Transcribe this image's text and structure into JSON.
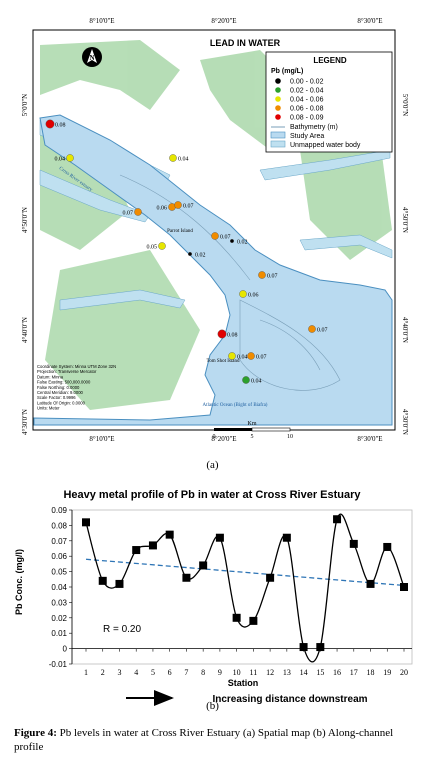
{
  "map": {
    "title": "LEAD IN WATER",
    "top_ticks": [
      "8°10'0\"E",
      "8°20'0\"E",
      "8°30'0\"E"
    ],
    "bottom_ticks": [
      "8°10'0\"E",
      "8°20'0\"E",
      "8°30'0\"E"
    ],
    "left_ticks": [
      "5°0'0\"N",
      "4°50'0\"N",
      "4°40'0\"N",
      "4°30'0\"N"
    ],
    "right_ticks": [
      "5°0'0\"N",
      "4°50'0\"N",
      "4°40'0\"N",
      "4°30'0\"N"
    ],
    "legend": {
      "title": "LEGEND",
      "subtitle": "Pb (mg/L)",
      "classes": [
        {
          "label": "0.00 - 0.02",
          "color": "#000000"
        },
        {
          "label": "0.02 - 0.04",
          "color": "#2ca02c"
        },
        {
          "label": "0.04 - 0.06",
          "color": "#e6e600"
        },
        {
          "label": "0.06 - 0.08",
          "color": "#f08c00"
        },
        {
          "label": "0.08 - 0.09",
          "color": "#e00000"
        }
      ],
      "bathymetry_label": "Bathymetry (m)",
      "study_area_label": "Study Area",
      "unmapped_label": "Unmapped water body"
    },
    "stations": [
      {
        "label": "0.08",
        "level": "0.08 - 0.09"
      },
      {
        "label": "0.04",
        "level": "0.04 - 0.06"
      },
      {
        "label": "0.04",
        "level": "0.04 - 0.06"
      },
      {
        "label": "0.07",
        "level": "0.06 - 0.08"
      },
      {
        "label": "0.06",
        "level": "0.06 - 0.08"
      },
      {
        "label": "0.07",
        "level": "0.06 - 0.08"
      },
      {
        "label": "0.05",
        "level": "0.04 - 0.06"
      },
      {
        "label": "0.02",
        "level": "0.00 - 0.02"
      },
      {
        "label": "0.07",
        "level": "0.06 - 0.08"
      },
      {
        "label": "0.02",
        "level": "0.00 - 0.02"
      },
      {
        "label": "0.07",
        "level": "0.06 - 0.08"
      },
      {
        "label": "0.06",
        "level": "0.04 - 0.06"
      },
      {
        "label": "0.07",
        "level": "0.06 - 0.08"
      },
      {
        "label": "0.08",
        "level": "0.08 - 0.09"
      },
      {
        "label": "0.04",
        "level": "0.04 - 0.06"
      },
      {
        "label": "0.07",
        "level": "0.06 - 0.08"
      },
      {
        "label": "0.04",
        "level": "0.02 - 0.04"
      }
    ],
    "place_labels": [
      "Parrot Island",
      "Tom Shot Island",
      "Atlantic Ocean (Bight of Biafra)",
      "Cross River estuary"
    ],
    "scale": {
      "unit": "Km",
      "ticks": [
        "0",
        "5",
        "10"
      ]
    },
    "info_lines": [
      "Coordinate System: Minna UTM Zone 32N",
      "Projection: Transverse Mercator",
      "Datum: Minna",
      "False Easting: 500,000.0000",
      "False Northing: 0.0000",
      "Central Meridian: 9.0000",
      "Scale Factor: 0.9996",
      "Latitude Of Origin: 0.0000",
      "Units: Meter"
    ],
    "north_symbol": "N",
    "panel_label": "(a)"
  },
  "chart_data": {
    "type": "line",
    "title": "Heavy metal profile of Pb in water at Cross River Estuary",
    "xlabel": "Station",
    "ylabel": "Pb Conc. (mg/l)",
    "categories": [
      "1",
      "2",
      "3",
      "4",
      "5",
      "6",
      "7",
      "8",
      "9",
      "10",
      "11",
      "12",
      "13",
      "14",
      "15",
      "16",
      "17",
      "18",
      "19",
      "20"
    ],
    "series": [
      {
        "values": [
          0.082,
          0.044,
          0.042,
          0.064,
          0.067,
          0.074,
          0.046,
          0.054,
          0.072,
          0.02,
          0.018,
          0.046,
          0.072,
          0.001,
          0.001,
          0.084,
          0.068,
          0.042,
          0.066,
          0.04
        ],
        "color": "#000000"
      }
    ],
    "trendline": {
      "start": 0.058,
      "end": 0.041,
      "color": "#2e75b6"
    },
    "annotation": "R = 0.20",
    "ylim": [
      -0.01,
      0.09
    ],
    "yticks": [
      "-0.01",
      "0",
      "0.01",
      "0.02",
      "0.03",
      "0.04",
      "0.05",
      "0.06",
      "0.07",
      "0.08",
      "0.09"
    ],
    "arrow_text": "Increasing distance downstream",
    "grid": false,
    "panel_label": "(b)"
  },
  "caption": {
    "label": "Figure 4:",
    "text": " Pb levels in water at Cross River Estuary (a) Spatial map (b) Along-channel profile"
  }
}
